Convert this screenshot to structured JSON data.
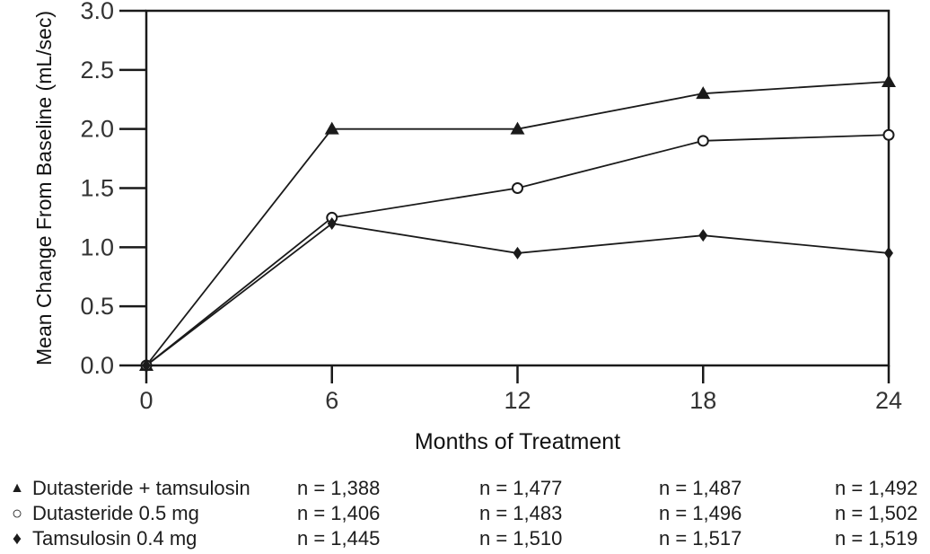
{
  "colors": {
    "line": "#1a1a1a",
    "tick_label": "#333333",
    "axis_label": "#111111",
    "background": "#ffffff",
    "marker_fill": "#1a1a1a",
    "open_marker_fill": "#ffffff"
  },
  "icons": {
    "filled_triangle": "▲",
    "open_circle": "○",
    "filled_diamond": "♦"
  },
  "chart_data": {
    "type": "line",
    "title": "",
    "xlabel": "Months of Treatment",
    "ylabel": "Mean Change From Baseline (mL/sec)",
    "xlim": [
      0,
      24
    ],
    "ylim": [
      0,
      3.0
    ],
    "x_ticks": [
      "0",
      "6",
      "12",
      "18",
      "24"
    ],
    "y_ticks": [
      "0.0",
      "0.5",
      "1.0",
      "1.5",
      "2.0",
      "2.5",
      "3.0"
    ],
    "grid": false,
    "legend_position": "bottom-table",
    "x": [
      0,
      6,
      12,
      18,
      24
    ],
    "series": [
      {
        "name": "Dutasteride + tamsulosin",
        "marker": "filled-triangle",
        "values": [
          0.0,
          2.0,
          2.0,
          2.3,
          2.4
        ],
        "n_by_visit": [
          "n = 1,388",
          "n = 1,477",
          "n = 1,487",
          "n = 1,492"
        ]
      },
      {
        "name": "Dutasteride 0.5 mg",
        "marker": "open-circle",
        "values": [
          0.0,
          1.25,
          1.5,
          1.9,
          1.95
        ],
        "n_by_visit": [
          "n = 1,406",
          "n = 1,483",
          "n = 1,496",
          "n = 1,502"
        ]
      },
      {
        "name": "Tamsulosin 0.4 mg",
        "marker": "filled-diamond",
        "values": [
          0.0,
          1.2,
          0.95,
          1.1,
          0.95
        ],
        "n_by_visit": [
          "n = 1,445",
          "n = 1,510",
          "n = 1,517",
          "n = 1,519"
        ]
      }
    ]
  }
}
